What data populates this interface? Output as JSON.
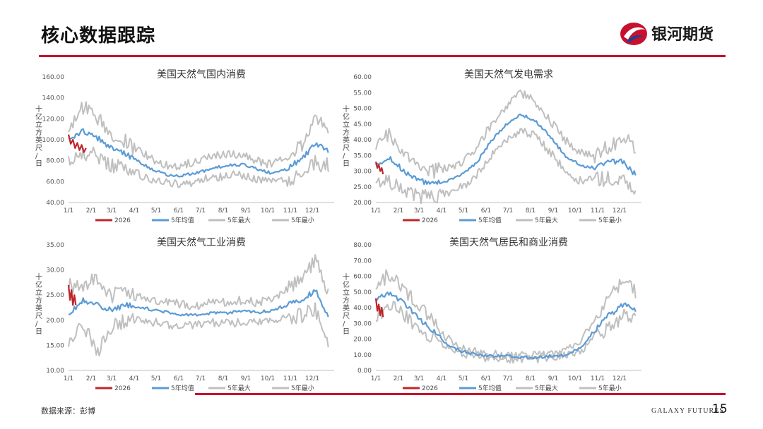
{
  "header": {
    "title": "核心数据跟踪",
    "logo_text": "银河期货"
  },
  "footer": {
    "source": "数据来源：彭博",
    "brand": "GALAXY FUTURES",
    "page_number": "15"
  },
  "colors": {
    "accent": "#c8102e",
    "series_2026": "#c0242a",
    "series_avg": "#5b9bd5",
    "series_max": "#bfbfbf",
    "series_min": "#bfbfbf"
  },
  "chart_data": [
    {
      "type": "line",
      "title": "美国天然气国内消费",
      "ylabel": "十亿立方英尺/日",
      "ylim": [
        40,
        160
      ],
      "yticks": [
        40,
        60,
        80,
        100,
        120,
        140,
        160
      ],
      "ytick_labels": [
        "40.00",
        "60.00",
        "80.00",
        "100.00",
        "120.00",
        "140.00",
        "160.00"
      ],
      "xticks": [
        "1/1",
        "2/1",
        "3/1",
        "4/1",
        "5/1",
        "6/1",
        "7/1",
        "8/1",
        "9/1",
        "10/1",
        "11/1",
        "12/1"
      ],
      "legend": [
        "2026",
        "5年均值",
        "5年最大",
        "5年最小"
      ],
      "series": [
        {
          "name": "2026",
          "day": [
            1,
            4,
            7,
            10,
            13,
            16,
            19,
            22,
            25
          ],
          "values": [
            105,
            96,
            100,
            92,
            97,
            90,
            95,
            88,
            92
          ]
        },
        {
          "name": "5年均值",
          "day": [
            1,
            20,
            40,
            60,
            80,
            100,
            120,
            140,
            160,
            180,
            200,
            220,
            240,
            260,
            280,
            300,
            320,
            340,
            356
          ],
          "values": [
            100,
            108,
            102,
            92,
            86,
            78,
            70,
            66,
            66,
            69,
            73,
            76,
            76,
            72,
            68,
            72,
            82,
            96,
            90
          ]
        },
        {
          "name": "5年最大",
          "day": [
            1,
            20,
            40,
            60,
            80,
            100,
            120,
            140,
            160,
            180,
            200,
            220,
            240,
            260,
            280,
            300,
            320,
            340,
            356
          ],
          "values": [
            105,
            132,
            120,
            106,
            98,
            88,
            80,
            74,
            76,
            80,
            85,
            86,
            85,
            80,
            76,
            84,
            95,
            118,
            112
          ]
        },
        {
          "name": "5年最小",
          "day": [
            1,
            20,
            40,
            60,
            80,
            100,
            120,
            140,
            160,
            180,
            200,
            220,
            240,
            260,
            280,
            300,
            320,
            340,
            356
          ],
          "values": [
            82,
            88,
            85,
            76,
            72,
            66,
            61,
            58,
            58,
            61,
            64,
            66,
            66,
            63,
            60,
            62,
            68,
            78,
            75
          ]
        }
      ]
    },
    {
      "type": "line",
      "title": "美国天然气发电需求",
      "ylabel": "十亿立方英尺/日",
      "ylim": [
        20,
        60
      ],
      "yticks": [
        20,
        25,
        30,
        35,
        40,
        45,
        50,
        55,
        60
      ],
      "ytick_labels": [
        "20.00",
        "25.00",
        "30.00",
        "35.00",
        "40.00",
        "45.00",
        "50.00",
        "55.00",
        "60.00"
      ],
      "xticks": [
        "1/1",
        "2/1",
        "3/1",
        "4/1",
        "5/1",
        "6/1",
        "7/1",
        "8/1",
        "9/1",
        "10/1",
        "11/1",
        "12/1"
      ],
      "legend": [
        "2026",
        "5年均值",
        "5年最大",
        "5年最小"
      ],
      "series": [
        {
          "name": "2026",
          "day": [
            1,
            3,
            5,
            7,
            9,
            11
          ],
          "values": [
            33,
            31,
            32,
            30,
            31,
            29
          ]
        },
        {
          "name": "5年均值",
          "day": [
            1,
            20,
            40,
            60,
            80,
            100,
            120,
            140,
            160,
            180,
            200,
            220,
            240,
            260,
            280,
            300,
            320,
            340,
            356
          ],
          "values": [
            32,
            34,
            30,
            27,
            26,
            27,
            29,
            33,
            40,
            45,
            48,
            46,
            41,
            35,
            32,
            31,
            33,
            33,
            29
          ]
        },
        {
          "name": "5年最大",
          "day": [
            1,
            20,
            40,
            60,
            80,
            100,
            120,
            140,
            160,
            180,
            200,
            220,
            240,
            260,
            280,
            300,
            320,
            340,
            356
          ],
          "values": [
            38,
            42,
            35,
            31,
            30,
            31,
            33,
            38,
            45,
            51,
            55,
            52,
            46,
            40,
            36,
            35,
            38,
            40,
            38
          ]
        },
        {
          "name": "5年最小",
          "day": [
            1,
            20,
            40,
            60,
            80,
            100,
            120,
            140,
            160,
            180,
            200,
            220,
            240,
            260,
            280,
            300,
            320,
            340,
            356
          ],
          "values": [
            26,
            27,
            24,
            22,
            22,
            23,
            25,
            29,
            35,
            40,
            43,
            41,
            36,
            30,
            27,
            27,
            28,
            28,
            24
          ]
        }
      ]
    },
    {
      "type": "line",
      "title": "美国天然气工业消费",
      "ylabel": "十亿立方英尺/日",
      "ylim": [
        10,
        35
      ],
      "yticks": [
        10,
        15,
        20,
        25,
        30,
        35
      ],
      "ytick_labels": [
        "10.00",
        "15.00",
        "20.00",
        "25.00",
        "30.00",
        "35.00"
      ],
      "xticks": [
        "1/1",
        "2/1",
        "3/1",
        "4/1",
        "5/1",
        "6/1",
        "7/1",
        "8/1",
        "9/1",
        "10/1",
        "11/1",
        "12/1"
      ],
      "legend": [
        "2026",
        "5年均值",
        "5年最大",
        "5年最小"
      ],
      "series": [
        {
          "name": "2026",
          "day": [
            1,
            3,
            5,
            7,
            9,
            11
          ],
          "values": [
            27,
            24,
            26,
            23,
            25,
            23
          ]
        },
        {
          "name": "5年均值",
          "day": [
            1,
            20,
            40,
            60,
            80,
            100,
            120,
            140,
            160,
            180,
            200,
            220,
            240,
            260,
            280,
            300,
            320,
            340,
            356
          ],
          "values": [
            21,
            24,
            23,
            22,
            23,
            22.5,
            22,
            21.5,
            21,
            21,
            21.5,
            21.5,
            22,
            21.5,
            22,
            23,
            24,
            26,
            21
          ]
        },
        {
          "name": "5年最大",
          "day": [
            1,
            20,
            40,
            60,
            80,
            100,
            120,
            140,
            160,
            180,
            200,
            220,
            240,
            260,
            280,
            300,
            320,
            340,
            356
          ],
          "values": [
            27,
            27,
            28,
            25,
            25,
            24.5,
            24,
            23.5,
            23,
            23,
            23.5,
            23.5,
            24,
            23.5,
            24,
            26,
            28,
            32,
            26
          ]
        },
        {
          "name": "5年最小",
          "day": [
            1,
            20,
            40,
            60,
            80,
            100,
            120,
            140,
            160,
            180,
            200,
            220,
            240,
            260,
            280,
            300,
            320,
            340,
            356
          ],
          "values": [
            16,
            20,
            13,
            19,
            20,
            20,
            19.5,
            19,
            19,
            19,
            19.5,
            19.5,
            19.5,
            19.5,
            20,
            20.5,
            21,
            22,
            16
          ]
        }
      ]
    },
    {
      "type": "line",
      "title": "美国天然气居民和商业消费",
      "ylabel": "十亿立方英尺/日",
      "ylim": [
        0,
        80
      ],
      "yticks": [
        0,
        10,
        20,
        30,
        40,
        50,
        60,
        70,
        80
      ],
      "ytick_labels": [
        "0.00",
        "10.00",
        "20.00",
        "30.00",
        "40.00",
        "50.00",
        "60.00",
        "70.00",
        "80.00"
      ],
      "xticks": [
        "1/1",
        "2/1",
        "3/1",
        "4/1",
        "5/1",
        "6/1",
        "7/1",
        "8/1",
        "9/1",
        "10/1",
        "11/1",
        "12/1"
      ],
      "legend": [
        "2026",
        "5年均值",
        "5年最大",
        "5年最小"
      ],
      "series": [
        {
          "name": "2026",
          "day": [
            1,
            3,
            5,
            7,
            9,
            11
          ],
          "values": [
            46,
            38,
            42,
            35,
            40,
            34
          ]
        },
        {
          "name": "5年均值",
          "day": [
            1,
            20,
            40,
            60,
            80,
            100,
            120,
            140,
            160,
            180,
            200,
            220,
            240,
            260,
            280,
            300,
            320,
            340,
            356
          ],
          "values": [
            45,
            49,
            43,
            33,
            25,
            16,
            12,
            10,
            9,
            9,
            8.5,
            8.5,
            9,
            10,
            14,
            25,
            35,
            42,
            38
          ]
        },
        {
          "name": "5年最大",
          "day": [
            1,
            20,
            40,
            60,
            80,
            100,
            120,
            140,
            160,
            180,
            200,
            220,
            240,
            260,
            280,
            300,
            320,
            340,
            356
          ],
          "values": [
            55,
            62,
            52,
            40,
            30,
            20,
            14,
            11.5,
            10.5,
            10,
            9.5,
            9.5,
            10,
            12,
            18,
            32,
            44,
            60,
            50
          ]
        },
        {
          "name": "5年最小",
          "day": [
            1,
            20,
            40,
            60,
            80,
            100,
            120,
            140,
            160,
            180,
            200,
            220,
            240,
            260,
            280,
            300,
            320,
            340,
            356
          ],
          "values": [
            36,
            40,
            36,
            27,
            21,
            13,
            10,
            8.5,
            8,
            7.5,
            7.5,
            7.5,
            8,
            9,
            12,
            20,
            28,
            34,
            32
          ]
        }
      ]
    }
  ]
}
